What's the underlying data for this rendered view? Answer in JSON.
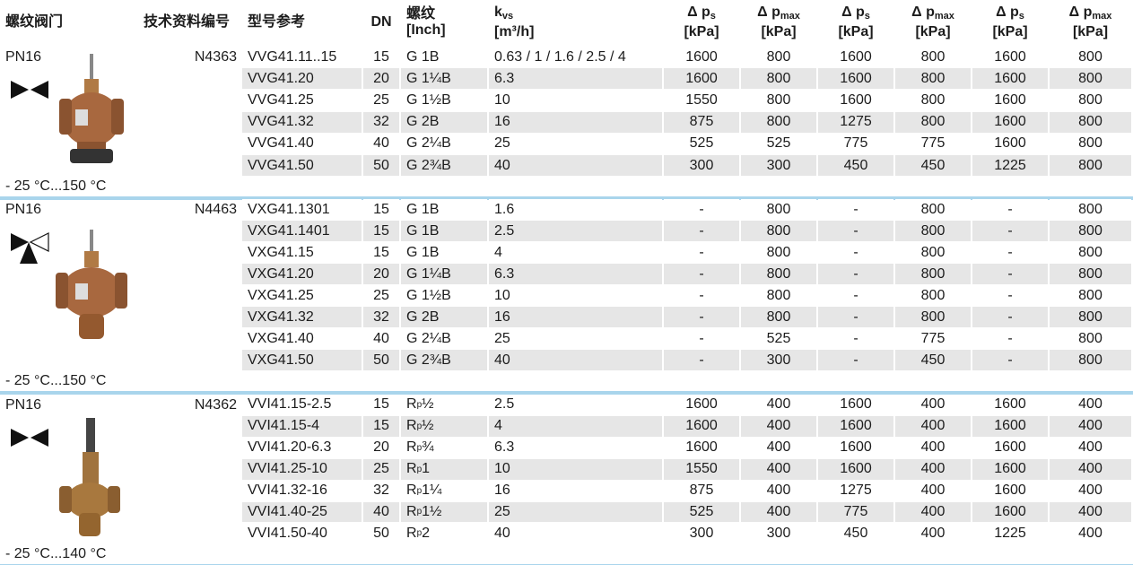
{
  "header": {
    "columns": [
      "螺纹阀门",
      "技术资料编号",
      "型号参考",
      "DN",
      {
        "main": "螺纹",
        "unit": "[Inch]"
      },
      {
        "main": "k",
        "sub": "vs",
        "unit": "[m³/h]"
      },
      {
        "main": "Δ p",
        "sub": "s",
        "unit": "[kPa]"
      },
      {
        "main": "Δ p",
        "sub": "max",
        "unit": "[kPa]"
      },
      {
        "main": "Δ p",
        "sub": "s",
        "unit": "[kPa]"
      },
      {
        "main": "Δ p",
        "sub": "max",
        "unit": "[kPa]"
      },
      {
        "main": "Δ p",
        "sub": "s",
        "unit": "[kPa]"
      },
      {
        "main": "Δ p",
        "sub": "max",
        "unit": "[kPa]"
      }
    ]
  },
  "groups": [
    {
      "pressure": "PN16",
      "temperature": "- 25 °C...150 °C",
      "doc": "N4363",
      "rows": [
        [
          "VVG41.11..15",
          15,
          "G 1B",
          "0.63 / 1 / 1.6 / 2.5 / 4",
          1600,
          800,
          1600,
          800,
          1600,
          800
        ],
        [
          "VVG41.20",
          20,
          "G 1¼B",
          6.3,
          1600,
          800,
          1600,
          800,
          1600,
          800
        ],
        [
          "VVG41.25",
          25,
          "G 1½B",
          10,
          1550,
          800,
          1600,
          800,
          1600,
          800
        ],
        [
          "VVG41.32",
          32,
          "G 2B",
          16,
          875,
          800,
          1275,
          800,
          1600,
          800
        ],
        [
          "VVG41.40",
          40,
          "G 2¼B",
          25,
          525,
          525,
          775,
          775,
          1600,
          800
        ],
        [
          "VVG41.50",
          50,
          "G 2¾B",
          40,
          300,
          300,
          450,
          450,
          1225,
          800
        ]
      ]
    },
    {
      "pressure": "PN16",
      "temperature": "- 25 °C...150 °C",
      "doc": "N4463",
      "rows": [
        [
          "VXG41.1301",
          15,
          "G 1B",
          1.6,
          "-",
          800,
          "-",
          800,
          "-",
          800
        ],
        [
          "VXG41.1401",
          15,
          "G 1B",
          2.5,
          "-",
          800,
          "-",
          800,
          "-",
          800
        ],
        [
          "VXG41.15",
          15,
          "G 1B",
          4,
          "-",
          800,
          "-",
          800,
          "-",
          800
        ],
        [
          "VXG41.20",
          20,
          "G 1¼B",
          6.3,
          "-",
          800,
          "-",
          800,
          "-",
          800
        ],
        [
          "VXG41.25",
          25,
          "G 1½B",
          10,
          "-",
          800,
          "-",
          800,
          "-",
          800
        ],
        [
          "VXG41.32",
          32,
          "G 2B",
          16,
          "-",
          800,
          "-",
          800,
          "-",
          800
        ],
        [
          "VXG41.40",
          40,
          "G 2¼B",
          25,
          "-",
          525,
          "-",
          775,
          "-",
          800
        ],
        [
          "VXG41.50",
          50,
          "G 2¾B",
          40,
          "-",
          300,
          "-",
          450,
          "-",
          800
        ]
      ]
    },
    {
      "pressure": "PN16",
      "temperature": "- 25 °C...140 °C",
      "doc": "N4362",
      "rows": [
        [
          "VVI41.15-2.5",
          15,
          {
            "base": "R",
            "sub": "p",
            "size": "½"
          },
          2.5,
          1600,
          400,
          1600,
          400,
          1600,
          400
        ],
        [
          "VVI41.15-4",
          15,
          {
            "base": "R",
            "sub": "p",
            "size": "½"
          },
          4,
          1600,
          400,
          1600,
          400,
          1600,
          400
        ],
        [
          "VVI41.20-6.3",
          20,
          {
            "base": "R",
            "sub": "p",
            "size": "¾"
          },
          6.3,
          1600,
          400,
          1600,
          400,
          1600,
          400
        ],
        [
          "VVI41.25-10",
          25,
          {
            "base": "R",
            "sub": "p",
            "size": "1"
          },
          10,
          1550,
          400,
          1600,
          400,
          1600,
          400
        ],
        [
          "VVI41.32-16",
          32,
          {
            "base": "R",
            "sub": "p",
            "size": "1¼"
          },
          16,
          875,
          400,
          1275,
          400,
          1600,
          400
        ],
        [
          "VVI41.40-25",
          40,
          {
            "base": "R",
            "sub": "p",
            "size": "1½"
          },
          25,
          525,
          400,
          775,
          400,
          1600,
          400
        ],
        [
          "VVI41.50-40",
          50,
          {
            "base": "R",
            "sub": "p",
            "size": "2"
          },
          40,
          300,
          300,
          450,
          400,
          1225,
          400
        ]
      ]
    }
  ]
}
